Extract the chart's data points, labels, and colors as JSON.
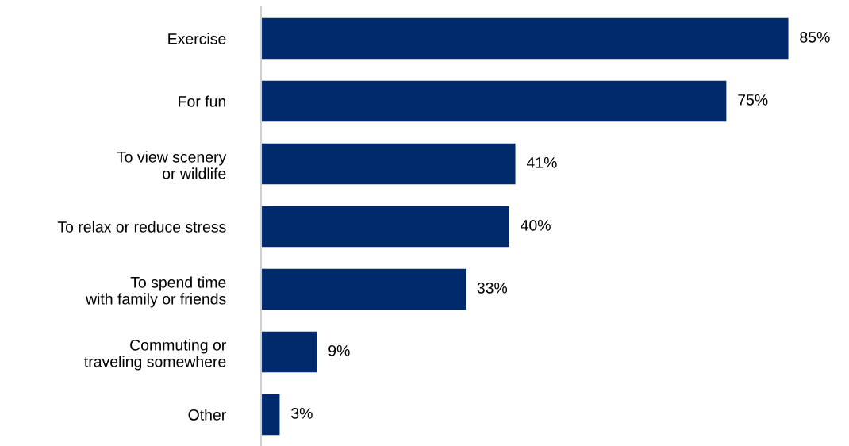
{
  "chart_data": {
    "type": "bar",
    "orientation": "horizontal",
    "categories": [
      "Exercise",
      "For fun",
      "To view scenery\nor wildlife",
      "To relax or reduce stress",
      "To spend time\nwith family or friends",
      "Commuting or\ntraveling somewhere",
      "Other"
    ],
    "values": [
      85,
      75,
      41,
      40,
      33,
      9,
      3
    ],
    "value_labels": [
      "85%",
      "75%",
      "41%",
      "40%",
      "33%",
      "9%",
      "3%"
    ],
    "color": "#002a6c",
    "tick_labels": "y",
    "grid": false,
    "legend": false
  }
}
